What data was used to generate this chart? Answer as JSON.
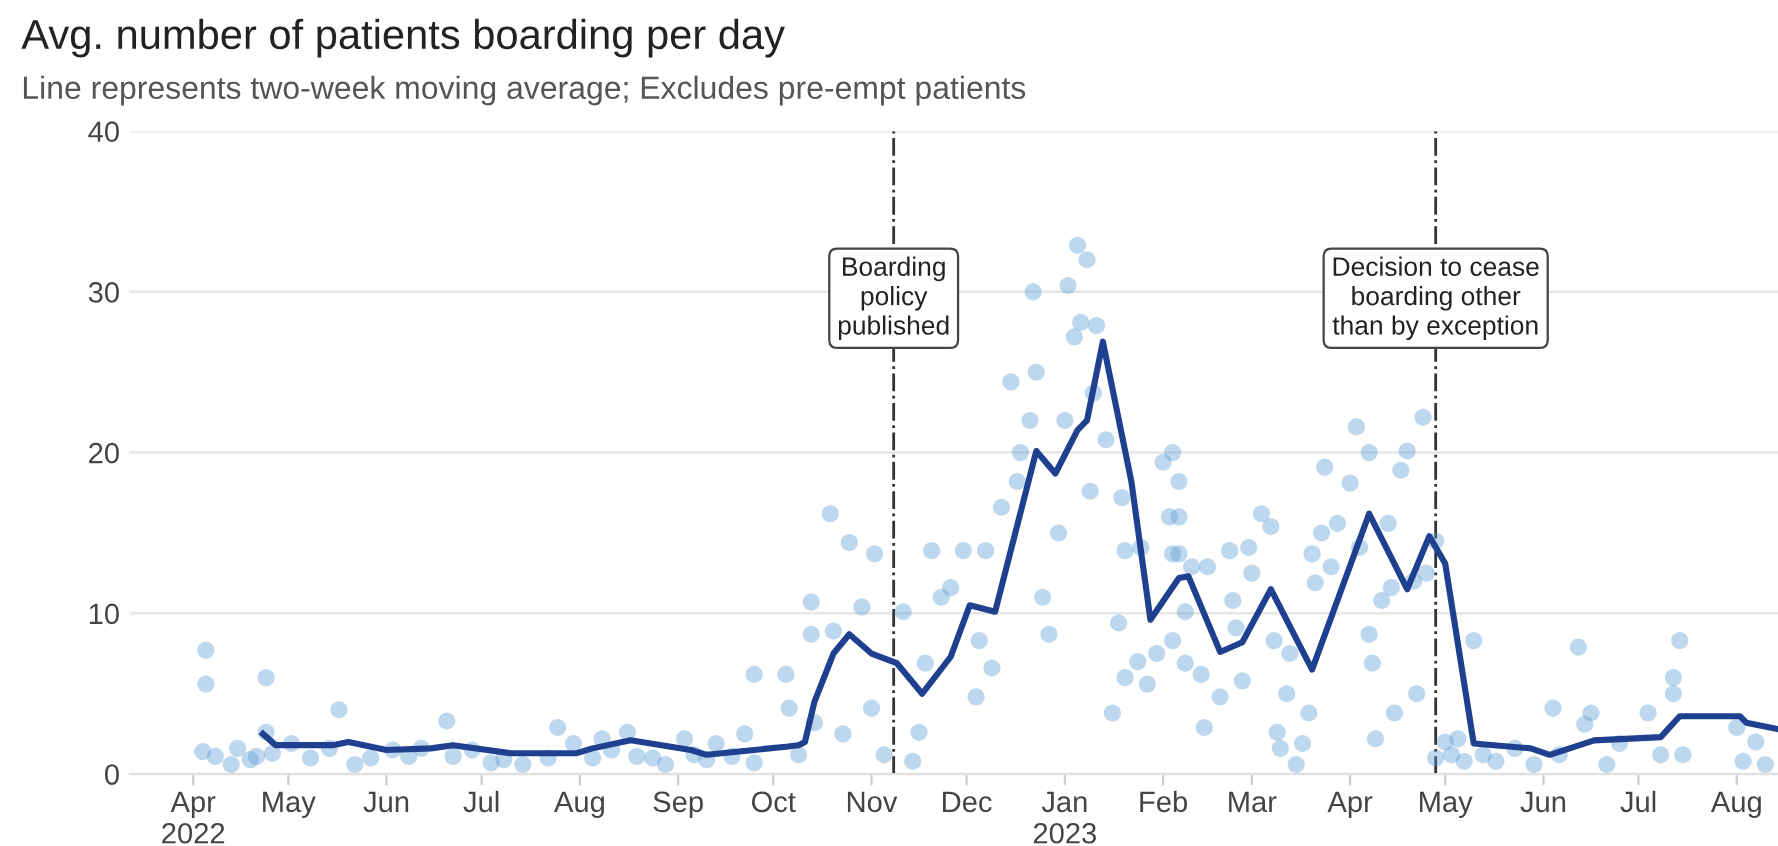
{
  "chart_data": {
    "type": "scatter",
    "title": "Avg. number of patients boarding per day",
    "subtitle": "Line represents two-week moving average; Excludes pre-empt patients",
    "xlim": [
      "2022-03-12",
      "2023-08-14"
    ],
    "xticks": [
      {
        "value": "2022-04-01",
        "label": "Apr\n2022"
      },
      {
        "value": "2022-05-01",
        "label": "May"
      },
      {
        "value": "2022-06-01",
        "label": "Jun"
      },
      {
        "value": "2022-07-01",
        "label": "Jul"
      },
      {
        "value": "2022-08-01",
        "label": "Aug"
      },
      {
        "value": "2022-09-01",
        "label": "Sep"
      },
      {
        "value": "2022-10-01",
        "label": "Oct"
      },
      {
        "value": "2022-11-01",
        "label": "Nov"
      },
      {
        "value": "2022-12-01",
        "label": "Dec"
      },
      {
        "value": "2023-01-01",
        "label": "Jan\n2023"
      },
      {
        "value": "2023-02-01",
        "label": "Feb"
      },
      {
        "value": "2023-03-01",
        "label": "Mar"
      },
      {
        "value": "2023-04-01",
        "label": "Apr"
      },
      {
        "value": "2023-05-01",
        "label": "May"
      },
      {
        "value": "2023-06-01",
        "label": "Jun"
      },
      {
        "value": "2023-07-01",
        "label": "Jul"
      },
      {
        "value": "2023-08-01",
        "label": "Aug"
      }
    ],
    "ylim": [
      0,
      40
    ],
    "yticks": [
      0,
      10,
      20,
      30,
      40
    ],
    "grid": "y",
    "ref_lines": [
      {
        "axis": "x",
        "value": "2022-11-08",
        "label": "Boarding\npolicy\npublished",
        "color": "#333333",
        "line_style": "dashdot"
      },
      {
        "axis": "x",
        "value": "2023-04-28",
        "label": "Decision to cease\nboarding other\nthan by exception",
        "color": "#333333",
        "line_style": "dashdot"
      }
    ],
    "series": [
      {
        "color": "#5b9bd5",
        "marker": "circle",
        "x": [
          "2022-04-05",
          "2022-04-05",
          "2022-04-04",
          "2022-04-08",
          "2022-04-13",
          "2022-04-15",
          "2022-04-19",
          "2022-04-21",
          "2022-04-24",
          "2022-04-24",
          "2022-04-26",
          "2022-05-02",
          "2022-05-08",
          "2022-05-14",
          "2022-05-17",
          "2022-05-22",
          "2022-05-27",
          "2022-06-03",
          "2022-06-08",
          "2022-06-12",
          "2022-06-20",
          "2022-06-22",
          "2022-06-28",
          "2022-07-04",
          "2022-07-08",
          "2022-07-14",
          "2022-07-22",
          "2022-07-25",
          "2022-07-30",
          "2022-08-05",
          "2022-08-08",
          "2022-08-11",
          "2022-08-16",
          "2022-08-19",
          "2022-08-24",
          "2022-08-28",
          "2022-09-03",
          "2022-09-06",
          "2022-09-10",
          "2022-09-13",
          "2022-09-18",
          "2022-09-22",
          "2022-09-25",
          "2022-09-25",
          "2022-10-05",
          "2022-10-06",
          "2022-10-09",
          "2022-10-14",
          "2022-10-13",
          "2022-10-19",
          "2022-10-13",
          "2022-10-20",
          "2022-10-25",
          "2022-11-02",
          "2022-10-29",
          "2022-10-23",
          "2022-11-01",
          "2022-11-05",
          "2022-11-11",
          "2022-11-14",
          "2022-11-16",
          "2022-11-18",
          "2022-11-20",
          "2022-11-23",
          "2022-11-26",
          "2022-11-30",
          "2022-12-04",
          "2022-12-05",
          "2022-12-07",
          "2022-12-09",
          "2022-12-12",
          "2022-12-15",
          "2022-12-17",
          "2022-12-18",
          "2022-12-21",
          "2022-12-22",
          "2022-12-23",
          "2022-12-25",
          "2022-12-27",
          "2022-12-30",
          "2023-01-01",
          "2023-01-02",
          "2023-01-04",
          "2023-01-05",
          "2023-01-08",
          "2023-01-06",
          "2023-01-11",
          "2023-01-10",
          "2023-01-09",
          "2023-01-14",
          "2023-01-16",
          "2023-01-18",
          "2023-01-19",
          "2023-01-20",
          "2023-01-20",
          "2023-01-24",
          "2023-01-25",
          "2023-01-27",
          "2023-01-30",
          "2023-02-01",
          "2023-02-04",
          "2023-02-03",
          "2023-02-04",
          "2023-02-06",
          "2023-02-06",
          "2023-02-06",
          "2023-02-10",
          "2023-02-08",
          "2023-02-04",
          "2023-02-08",
          "2023-02-13",
          "2023-02-14",
          "2023-02-15",
          "2023-02-19",
          "2023-02-22",
          "2023-02-23",
          "2023-02-24",
          "2023-02-26",
          "2023-02-28",
          "2023-03-01",
          "2023-03-04",
          "2023-03-07",
          "2023-03-08",
          "2023-03-09",
          "2023-03-10",
          "2023-03-12",
          "2023-03-13",
          "2023-03-15",
          "2023-03-17",
          "2023-03-19",
          "2023-03-20",
          "2023-03-21",
          "2023-03-23",
          "2023-03-24",
          "2023-03-26",
          "2023-03-28",
          "2023-04-01",
          "2023-04-03",
          "2023-04-04",
          "2023-04-07",
          "2023-04-07",
          "2023-04-08",
          "2023-04-09",
          "2023-04-11",
          "2023-04-13",
          "2023-04-14",
          "2023-04-15",
          "2023-04-17",
          "2023-04-19",
          "2023-04-21",
          "2023-04-22",
          "2023-04-24",
          "2023-04-25",
          "2023-04-28",
          "2023-04-28",
          "2023-05-01",
          "2023-05-03",
          "2023-05-05",
          "2023-05-07",
          "2023-05-10",
          "2023-05-13",
          "2023-05-17",
          "2023-05-23",
          "2023-05-29",
          "2023-06-04",
          "2023-06-06",
          "2023-06-12",
          "2023-06-14",
          "2023-06-16",
          "2023-06-21",
          "2023-06-25",
          "2023-07-04",
          "2023-07-08",
          "2023-07-12",
          "2023-07-12",
          "2023-07-14",
          "2023-07-15",
          "2023-08-01",
          "2023-08-03",
          "2023-08-07",
          "2023-08-10"
        ],
        "values": [
          7.7,
          5.6,
          1.4,
          1.1,
          0.6,
          1.6,
          0.9,
          1.1,
          6.0,
          2.6,
          1.3,
          1.9,
          1.0,
          1.6,
          4.0,
          0.6,
          1.0,
          1.5,
          1.1,
          1.6,
          3.3,
          1.1,
          1.5,
          0.7,
          0.9,
          0.6,
          1.0,
          2.9,
          1.9,
          1.0,
          2.2,
          1.5,
          2.6,
          1.1,
          1.0,
          0.6,
          2.2,
          1.2,
          0.9,
          1.9,
          1.1,
          2.5,
          0.7,
          6.2,
          6.2,
          4.1,
          1.2,
          3.2,
          10.7,
          16.2,
          8.7,
          8.9,
          14.4,
          13.7,
          10.4,
          2.5,
          4.1,
          1.2,
          10.1,
          0.8,
          2.6,
          6.9,
          13.9,
          11.0,
          11.6,
          13.9,
          4.8,
          8.3,
          13.9,
          6.6,
          16.6,
          24.4,
          18.2,
          20.0,
          22.0,
          30.0,
          25.0,
          11.0,
          8.7,
          15.0,
          22.0,
          30.4,
          27.2,
          32.9,
          32.0,
          28.1,
          27.9,
          23.7,
          17.6,
          20.8,
          3.8,
          9.4,
          17.2,
          13.9,
          6.0,
          7.0,
          14.1,
          5.6,
          7.5,
          19.4,
          20.0,
          16.0,
          13.7,
          18.2,
          16.0,
          13.7,
          12.9,
          10.1,
          8.3,
          6.9,
          6.2,
          2.9,
          12.9,
          4.8,
          13.9,
          10.8,
          9.1,
          5.8,
          14.1,
          12.5,
          16.2,
          15.4,
          8.3,
          2.6,
          1.6,
          5.0,
          7.5,
          0.6,
          1.9,
          3.8,
          13.7,
          11.9,
          15.0,
          19.1,
          12.9,
          15.6,
          18.1,
          21.6,
          14.1,
          20.0,
          8.7,
          6.9,
          2.2,
          10.8,
          15.6,
          11.6,
          3.8,
          18.9,
          20.1,
          12.0,
          5.0,
          22.2,
          12.5,
          14.5,
          1.0,
          2.0,
          1.2,
          2.2,
          0.8,
          8.3,
          1.2,
          0.8,
          1.6,
          0.6,
          4.1,
          1.2,
          7.9,
          3.1,
          3.8,
          0.6,
          1.9,
          3.8,
          1.2,
          6.0,
          5.0,
          8.3,
          1.2,
          2.9,
          0.8,
          2.0,
          0.6
        ]
      },
      {
        "type": "line",
        "color": "#1f3f8f",
        "x": [
          "2022-04-23",
          "2022-04-27",
          "2022-05-15",
          "2022-05-20",
          "2022-06-01",
          "2022-06-15",
          "2022-06-22",
          "2022-07-10",
          "2022-07-31",
          "2022-08-05",
          "2022-08-17",
          "2022-09-05",
          "2022-09-10",
          "2022-09-25",
          "2022-10-05",
          "2022-10-09",
          "2022-10-11",
          "2022-10-14",
          "2022-10-20",
          "2022-10-25",
          "2022-11-01",
          "2022-11-09",
          "2022-11-17",
          "2022-11-26",
          "2022-12-02",
          "2022-12-10",
          "2022-12-23",
          "2022-12-29",
          "2023-01-05",
          "2023-01-08",
          "2023-01-13",
          "2023-01-22",
          "2023-01-28",
          "2023-02-06",
          "2023-02-09",
          "2023-02-19",
          "2023-02-26",
          "2023-03-07",
          "2023-03-20",
          "2023-04-07",
          "2023-04-19",
          "2023-04-26",
          "2023-05-01",
          "2023-05-10",
          "2023-05-28",
          "2023-06-03",
          "2023-06-17",
          "2023-07-08",
          "2023-07-14",
          "2023-08-02",
          "2023-08-04",
          "2023-08-14"
        ],
        "values": [
          2.5,
          1.8,
          1.8,
          2.0,
          1.5,
          1.6,
          1.8,
          1.3,
          1.3,
          1.6,
          2.1,
          1.5,
          1.2,
          1.5,
          1.7,
          1.8,
          2.0,
          4.5,
          7.5,
          8.7,
          7.5,
          6.9,
          5.0,
          7.3,
          10.5,
          10.1,
          20.1,
          18.7,
          21.4,
          22.0,
          26.9,
          18.2,
          9.6,
          12.2,
          12.3,
          7.6,
          8.2,
          11.5,
          6.5,
          16.2,
          11.5,
          14.8,
          13.1,
          1.9,
          1.6,
          1.2,
          2.1,
          2.3,
          3.6,
          3.6,
          3.2,
          2.8
        ]
      }
    ]
  }
}
